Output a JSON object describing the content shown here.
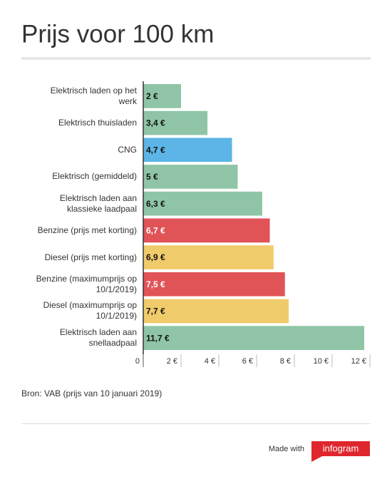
{
  "chart_data": {
    "type": "hbar",
    "title": "Prijs voor 100 km",
    "categories": [
      "Elektrisch laden op het werk",
      "Elektrisch thuisladen",
      "CNG",
      "Elektrisch (gemiddeld)",
      "Elektrisch laden aan klassieke laadpaal",
      "Benzine (prijs met korting)",
      "Diesel (prijs met korting)",
      "Benzine (maximumprijs op 10/1/2019)",
      "Diesel (maximumprijs op 10/1/2019)",
      "Elektrisch laden aan snellaadpaal"
    ],
    "values": [
      2,
      3.4,
      4.7,
      5,
      6.3,
      6.7,
      6.9,
      7.5,
      7.7,
      11.7
    ],
    "value_labels": [
      "2 €",
      "3,4 €",
      "4,7 €",
      "5 €",
      "6,3 €",
      "6,7 €",
      "6,9 €",
      "7,5 €",
      "7,7 €",
      "11,7 €"
    ],
    "colors": [
      "#8fc5a6",
      "#8fc5a6",
      "#5cb5e6",
      "#8fc5a6",
      "#8fc5a6",
      "#e05357",
      "#f0cb6b",
      "#e05357",
      "#f0cb6b",
      "#8fc5a6"
    ],
    "xlim": [
      0,
      12
    ],
    "xticks": [
      0,
      {
        "value": 2,
        "label": "2 €"
      },
      {
        "value": 4,
        "label": "4 €"
      },
      {
        "value": 6,
        "label": "6 €"
      },
      {
        "value": 8,
        "label": "8 €"
      },
      {
        "value": 10,
        "label": "10 €"
      },
      {
        "value": 12,
        "label": "12 €"
      }
    ],
    "grid": false,
    "source": "Bron: VAB (prijs van 10 januari 2019)"
  },
  "footer": {
    "text": "Made with",
    "brand": "infogram"
  }
}
